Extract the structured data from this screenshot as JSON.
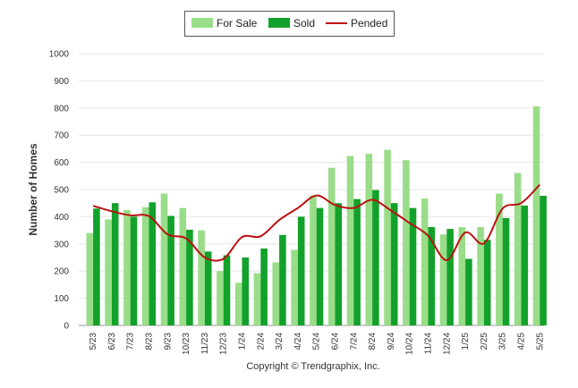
{
  "chart_data": {
    "type": "bar",
    "ylabel": "Number of Homes",
    "credit": "Copyright © Trendgraphix, Inc.",
    "ylim": [
      0,
      1000
    ],
    "yticks": [
      0,
      100,
      200,
      300,
      400,
      500,
      600,
      700,
      800,
      900,
      1000
    ],
    "grid": true,
    "legend_position": "top-center",
    "categories": [
      "5/23",
      "6/23",
      "7/23",
      "8/23",
      "9/23",
      "10/23",
      "11/23",
      "12/23",
      "1/24",
      "2/24",
      "3/24",
      "4/24",
      "5/24",
      "6/24",
      "7/24",
      "8/24",
      "9/24",
      "10/24",
      "11/24",
      "12/24",
      "1/25",
      "2/25",
      "3/25",
      "4/25",
      "5/25"
    ],
    "series": [
      {
        "name": "For Sale",
        "type": "bar",
        "color": "#99dd88",
        "values": [
          340,
          390,
          425,
          435,
          485,
          432,
          350,
          200,
          157,
          192,
          232,
          278,
          478,
          580,
          623,
          632,
          646,
          608,
          467,
          335,
          362,
          362,
          485,
          561,
          806
        ]
      },
      {
        "name": "Sold",
        "type": "bar",
        "color": "#12a12a",
        "values": [
          430,
          450,
          400,
          453,
          403,
          352,
          272,
          258,
          250,
          283,
          333,
          400,
          432,
          450,
          465,
          498,
          450,
          432,
          362,
          355,
          245,
          315,
          395,
          441,
          477
        ]
      },
      {
        "name": "Pended",
        "type": "line",
        "color": "#bb1111",
        "values": [
          440,
          420,
          405,
          402,
          335,
          320,
          250,
          245,
          325,
          328,
          388,
          432,
          478,
          443,
          432,
          462,
          423,
          377,
          330,
          240,
          342,
          302,
          430,
          450,
          518
        ]
      }
    ]
  }
}
